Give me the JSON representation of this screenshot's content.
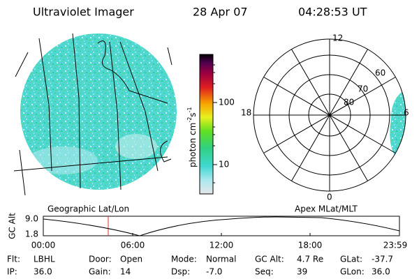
{
  "header": {
    "title": "Ultraviolet Imager",
    "date": "28 Apr 07",
    "time": "04:28:53 UT"
  },
  "colorbar": {
    "label": [
      "photon cm",
      "-2",
      "s",
      "-1"
    ],
    "ticks": [
      "100",
      "10"
    ]
  },
  "polar": {
    "hours": [
      "12",
      "18",
      "6",
      "0"
    ],
    "latitudes": [
      "60",
      "70",
      "80"
    ]
  },
  "captions": {
    "left": "Geographic Lat/Lon",
    "right": "Apex MLat/MLT"
  },
  "altitude_plot": {
    "ylabel": "GC Alt",
    "yticks": [
      "9.0",
      "1.8"
    ],
    "xticks": [
      "00:00",
      "06:00",
      "12:00",
      "18:00",
      "23:59"
    ]
  },
  "info": {
    "rows": [
      [
        {
          "label": "Flt:",
          "value": "LBHL"
        },
        {
          "label": "Door:",
          "value": "Open"
        },
        {
          "label": "Mode:",
          "value": "Normal"
        },
        {
          "label": "GC Alt:",
          "value": "4.7 Re"
        },
        {
          "label": "GLat:",
          "value": "-37.7"
        }
      ],
      [
        {
          "label": "IP:",
          "value": "36.0"
        },
        {
          "label": "Gain:",
          "value": "14"
        },
        {
          "label": "Dsp:",
          "value": "-7.0"
        },
        {
          "label": "Seq:",
          "value": "39"
        },
        {
          "label": "GLon:",
          "value": "36.0"
        }
      ]
    ]
  }
}
